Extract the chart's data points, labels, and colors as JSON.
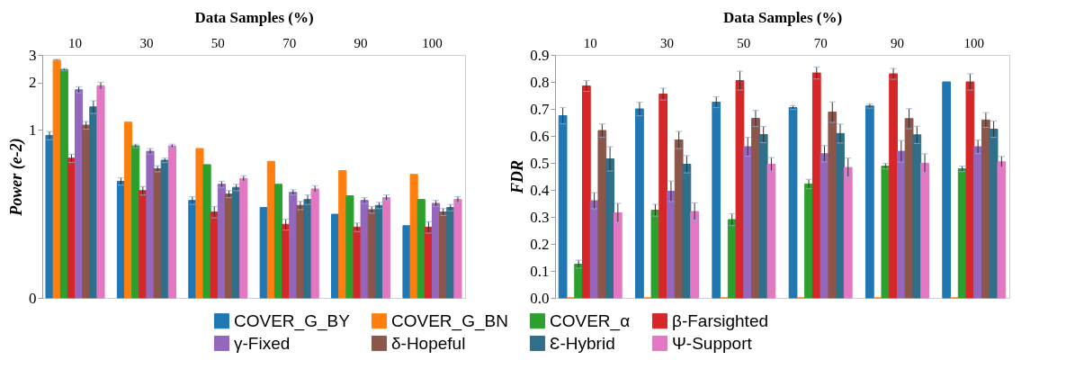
{
  "chart_data": [
    {
      "type": "bar",
      "xlabel": "Data Samples (%)",
      "ylabel": "Power (e-2)",
      "categories": [
        "10",
        "30",
        "50",
        "70",
        "90",
        "100"
      ],
      "log": true,
      "ylim": [
        0.085,
        3
      ],
      "yticks": [
        {
          "value": 0.085,
          "label": "0"
        },
        1,
        2,
        3
      ],
      "legend": "bottom",
      "series": [
        {
          "name": "COVER_G_BY",
          "color": "#1f77b4",
          "values": [
            0.92,
            0.47,
            0.355,
            0.32,
            0.29,
            0.245
          ],
          "errors": [
            0.055,
            0.025,
            0.02,
            null,
            null,
            null
          ]
        },
        {
          "name": "COVER_G_BN",
          "color": "#ff7f0e",
          "values": [
            2.78,
            1.12,
            0.76,
            0.63,
            0.55,
            0.52
          ],
          "errors": [
            0.03,
            null,
            null,
            null,
            null,
            null
          ]
        },
        {
          "name": "COVER_α",
          "color": "#2ca02c",
          "values": [
            2.42,
            0.79,
            0.6,
            0.45,
            0.38,
            0.36
          ],
          "errors": [
            0.04,
            0.02,
            null,
            null,
            null,
            null
          ]
        },
        {
          "name": "β-Farsighted",
          "color": "#d62728",
          "values": [
            0.66,
            0.41,
            0.3,
            0.25,
            0.24,
            0.24
          ],
          "errors": [
            0.04,
            0.025,
            0.025,
            0.02,
            0.015,
            0.02
          ]
        },
        {
          "name": "γ-Fixed",
          "color": "#9467bd",
          "values": [
            1.8,
            0.73,
            0.45,
            0.4,
            0.355,
            0.34
          ],
          "errors": [
            0.08,
            0.03,
            0.02,
            0.015,
            0.015,
            0.015
          ]
        },
        {
          "name": "δ-Hopeful",
          "color": "#8c564b",
          "values": [
            1.07,
            0.565,
            0.39,
            0.33,
            0.31,
            0.3
          ],
          "errors": [
            0.06,
            0.025,
            0.02,
            0.02,
            0.015,
            0.015
          ]
        },
        {
          "name": "Ɛ-Hybrid",
          "color": "#2f6f8a",
          "values": [
            1.4,
            0.64,
            0.43,
            0.36,
            0.33,
            0.32
          ],
          "errors": [
            0.13,
            0.02,
            0.02,
            0.025,
            0.015,
            0.015
          ]
        },
        {
          "name": "Ψ-Support",
          "color": "#e377c2",
          "values": [
            1.91,
            0.79,
            0.49,
            0.42,
            0.37,
            0.36
          ],
          "errors": [
            0.1,
            0.02,
            0.02,
            0.02,
            0.015,
            0.015
          ]
        }
      ]
    },
    {
      "type": "bar",
      "xlabel": "Data Samples (%)",
      "ylabel": "FDR",
      "categories": [
        "10",
        "30",
        "50",
        "70",
        "90",
        "100"
      ],
      "ylim": [
        0,
        0.9
      ],
      "yticks": [
        {
          "value": 0,
          "label": "0.0"
        },
        0.1,
        0.2,
        0.3,
        0.4,
        0.5,
        0.6,
        0.7,
        0.8,
        0.9
      ],
      "series": [
        {
          "color": "#1f77b4",
          "values": [
            0.675,
            0.7,
            0.725,
            0.705,
            0.711,
            0.8
          ],
          "errors": [
            0.03,
            0.025,
            0.02,
            0.007,
            0.008,
            null
          ]
        },
        {
          "color": "#ff7f0e",
          "values": [
            0,
            0,
            0,
            0,
            0,
            0
          ],
          "errors": [
            null,
            null,
            null,
            null,
            null,
            null
          ]
        },
        {
          "color": "#2ca02c",
          "values": [
            0.125,
            0.325,
            0.29,
            0.422,
            0.488,
            0.478
          ],
          "errors": [
            0.015,
            0.022,
            0.022,
            0.017,
            0.01,
            0.01
          ]
        },
        {
          "color": "#d62728",
          "values": [
            0.785,
            0.755,
            0.805,
            0.833,
            0.83,
            0.8
          ],
          "errors": [
            0.02,
            0.022,
            0.035,
            0.022,
            0.02,
            0.03
          ]
        },
        {
          "color": "#9467bd",
          "values": [
            0.36,
            0.395,
            0.56,
            0.534,
            0.543,
            0.56
          ],
          "errors": [
            0.03,
            0.038,
            0.035,
            0.03,
            0.04,
            0.025
          ]
        },
        {
          "color": "#8c564b",
          "values": [
            0.62,
            0.585,
            0.665,
            0.688,
            0.664,
            0.659
          ],
          "errors": [
            0.025,
            0.032,
            0.03,
            0.038,
            0.037,
            0.027
          ]
        },
        {
          "color": "#2f6f8a",
          "values": [
            0.515,
            0.495,
            0.605,
            0.609,
            0.604,
            0.625
          ],
          "errors": [
            0.045,
            0.032,
            0.03,
            0.035,
            0.032,
            0.03
          ]
        },
        {
          "color": "#e377c2",
          "values": [
            0.315,
            0.32,
            0.495,
            0.483,
            0.499,
            0.504
          ],
          "errors": [
            0.035,
            0.032,
            0.025,
            0.035,
            0.035,
            0.02
          ]
        }
      ]
    }
  ]
}
